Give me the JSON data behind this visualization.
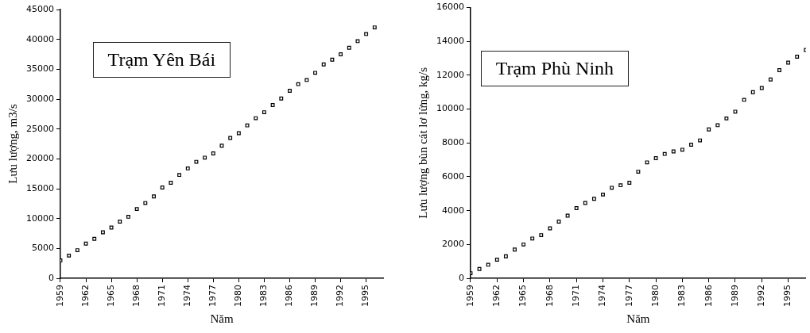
{
  "chart_data": [
    {
      "type": "scatter",
      "annotations": [
        "Trạm Yên Bái"
      ],
      "xlabel": "Năm",
      "ylabel": "Lưu lượng, m3/s",
      "marker": "square",
      "grid": false,
      "legend": false,
      "xlim": [
        1959,
        1997
      ],
      "xticks": [
        1959,
        1962,
        1965,
        1968,
        1971,
        1974,
        1977,
        1980,
        1983,
        1986,
        1989,
        1992,
        1995
      ],
      "ylim": [
        0,
        45000
      ],
      "yticks": [
        0,
        5000,
        10000,
        15000,
        20000,
        25000,
        30000,
        35000,
        40000,
        45000
      ],
      "series": [
        {
          "color": "#000000",
          "x": [
            1959,
            1960,
            1961,
            1962,
            1963,
            1964,
            1965,
            1966,
            1967,
            1968,
            1969,
            1970,
            1971,
            1972,
            1973,
            1974,
            1975,
            1976,
            1977,
            1978,
            1979,
            1980,
            1981,
            1982,
            1983,
            1984,
            1985,
            1986,
            1987,
            1988,
            1989,
            1990,
            1991,
            1992,
            1993,
            1994,
            1995,
            1996
          ],
          "values": [
            3000,
            3800,
            4700,
            5800,
            6600,
            7700,
            8500,
            9500,
            10300,
            11600,
            12600,
            13700,
            15200,
            16000,
            17300,
            18400,
            19500,
            20200,
            20900,
            22200,
            23500,
            24300,
            25600,
            26800,
            27800,
            29000,
            30100,
            31400,
            32500,
            33200,
            34400,
            35800,
            36600,
            37500,
            38600,
            39700,
            40900,
            42000
          ]
        }
      ]
    },
    {
      "type": "scatter",
      "annotations": [
        "Trạm Phù Ninh"
      ],
      "xlabel": "Năm",
      "ylabel": "Lưu lượng bùn cát lơ lửng, kg/s",
      "marker": "square",
      "grid": false,
      "legend": false,
      "xlim": [
        1959,
        1997
      ],
      "xticks": [
        1959,
        1962,
        1965,
        1968,
        1971,
        1974,
        1977,
        1980,
        1983,
        1986,
        1989,
        1992,
        1995
      ],
      "ylim": [
        0,
        16000
      ],
      "yticks": [
        0,
        2000,
        4000,
        6000,
        8000,
        10000,
        12000,
        14000,
        16000
      ],
      "series": [
        {
          "color": "#000000",
          "x": [
            1959,
            1960,
            1961,
            1962,
            1963,
            1964,
            1965,
            1966,
            1967,
            1968,
            1969,
            1970,
            1971,
            1972,
            1973,
            1974,
            1975,
            1976,
            1977,
            1978,
            1979,
            1980,
            1981,
            1982,
            1983,
            1984,
            1985,
            1986,
            1987,
            1988,
            1989,
            1990,
            1991,
            1992,
            1993,
            1994,
            1995,
            1996,
            1997
          ],
          "values": [
            300,
            550,
            800,
            1100,
            1300,
            1700,
            2000,
            2350,
            2550,
            2950,
            3350,
            3700,
            4150,
            4450,
            4700,
            4950,
            5350,
            5500,
            5650,
            6300,
            6850,
            7100,
            7350,
            7500,
            7600,
            7900,
            8150,
            8800,
            9050,
            9450,
            9850,
            10550,
            11000,
            11250,
            11750,
            12300,
            12750,
            13100,
            13500
          ]
        }
      ]
    }
  ]
}
